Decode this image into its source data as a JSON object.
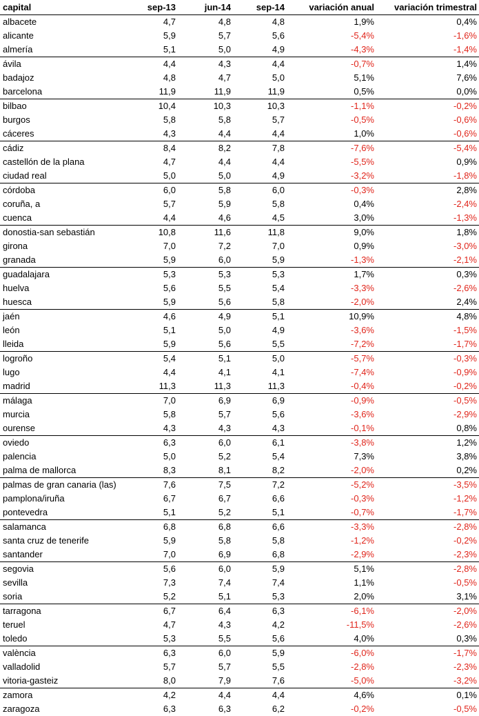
{
  "table": {
    "header": [
      "capital",
      "sep-13",
      "jun-14",
      "sep-14",
      "variación anual",
      "variación trimestral"
    ],
    "rows": [
      [
        "albacete",
        "4,7",
        "4,8",
        "4,8",
        "1,9%",
        "0,4%"
      ],
      [
        "alicante",
        "5,9",
        "5,7",
        "5,6",
        "-5,4%",
        "-1,6%"
      ],
      [
        "almería",
        "5,1",
        "5,0",
        "4,9",
        "-4,3%",
        "-1,4%"
      ],
      [
        "ávila",
        "4,4",
        "4,3",
        "4,4",
        "-0,7%",
        "1,4%"
      ],
      [
        "badajoz",
        "4,8",
        "4,7",
        "5,0",
        "5,1%",
        "7,6%"
      ],
      [
        "barcelona",
        "11,9",
        "11,9",
        "11,9",
        "0,5%",
        "0,0%"
      ],
      [
        "bilbao",
        "10,4",
        "10,3",
        "10,3",
        "-1,1%",
        "-0,2%"
      ],
      [
        "burgos",
        "5,8",
        "5,8",
        "5,7",
        "-0,5%",
        "-0,6%"
      ],
      [
        "cáceres",
        "4,3",
        "4,4",
        "4,4",
        "1,0%",
        "-0,6%"
      ],
      [
        "cádiz",
        "8,4",
        "8,2",
        "7,8",
        "-7,6%",
        "-5,4%"
      ],
      [
        "castellón de la plana",
        "4,7",
        "4,4",
        "4,4",
        "-5,5%",
        "0,9%"
      ],
      [
        "ciudad real",
        "5,0",
        "5,0",
        "4,9",
        "-3,2%",
        "-1,8%"
      ],
      [
        "córdoba",
        "6,0",
        "5,8",
        "6,0",
        "-0,3%",
        "2,8%"
      ],
      [
        "coruña, a",
        "5,7",
        "5,9",
        "5,8",
        "0,4%",
        "-2,4%"
      ],
      [
        "cuenca",
        "4,4",
        "4,6",
        "4,5",
        "3,0%",
        "-1,3%"
      ],
      [
        "donostia-san sebastián",
        "10,8",
        "11,6",
        "11,8",
        "9,0%",
        "1,8%"
      ],
      [
        "girona",
        "7,0",
        "7,2",
        "7,0",
        "0,9%",
        "-3,0%"
      ],
      [
        "granada",
        "5,9",
        "6,0",
        "5,9",
        "-1,3%",
        "-2,1%"
      ],
      [
        "guadalajara",
        "5,3",
        "5,3",
        "5,3",
        "1,7%",
        "0,3%"
      ],
      [
        "huelva",
        "5,6",
        "5,5",
        "5,4",
        "-3,3%",
        "-2,6%"
      ],
      [
        "huesca",
        "5,9",
        "5,6",
        "5,8",
        "-2,0%",
        "2,4%"
      ],
      [
        "jaén",
        "4,6",
        "4,9",
        "5,1",
        "10,9%",
        "4,8%"
      ],
      [
        "león",
        "5,1",
        "5,0",
        "4,9",
        "-3,6%",
        "-1,5%"
      ],
      [
        "lleida",
        "5,9",
        "5,6",
        "5,5",
        "-7,2%",
        "-1,7%"
      ],
      [
        "logroño",
        "5,4",
        "5,1",
        "5,0",
        "-5,7%",
        "-0,3%"
      ],
      [
        "lugo",
        "4,4",
        "4,1",
        "4,1",
        "-7,4%",
        "-0,9%"
      ],
      [
        "madrid",
        "11,3",
        "11,3",
        "11,3",
        "-0,4%",
        "-0,2%"
      ],
      [
        "málaga",
        "7,0",
        "6,9",
        "6,9",
        "-0,9%",
        "-0,5%"
      ],
      [
        "murcia",
        "5,8",
        "5,7",
        "5,6",
        "-3,6%",
        "-2,9%"
      ],
      [
        "ourense",
        "4,3",
        "4,3",
        "4,3",
        "-0,1%",
        "0,8%"
      ],
      [
        "oviedo",
        "6,3",
        "6,0",
        "6,1",
        "-3,8%",
        "1,2%"
      ],
      [
        "palencia",
        "5,0",
        "5,2",
        "5,4",
        "7,3%",
        "3,8%"
      ],
      [
        "palma de mallorca",
        "8,3",
        "8,1",
        "8,2",
        "-2,0%",
        "0,2%"
      ],
      [
        "palmas de gran canaria (las)",
        "7,6",
        "7,5",
        "7,2",
        "-5,2%",
        "-3,5%"
      ],
      [
        "pamplona/iruña",
        "6,7",
        "6,7",
        "6,6",
        "-0,3%",
        "-1,2%"
      ],
      [
        "pontevedra",
        "5,1",
        "5,2",
        "5,1",
        "-0,7%",
        "-1,7%"
      ],
      [
        "salamanca",
        "6,8",
        "6,8",
        "6,6",
        "-3,3%",
        "-2,8%"
      ],
      [
        "santa cruz de tenerife",
        "5,9",
        "5,8",
        "5,8",
        "-1,2%",
        "-0,2%"
      ],
      [
        "santander",
        "7,0",
        "6,9",
        "6,8",
        "-2,9%",
        "-2,3%"
      ],
      [
        "segovia",
        "5,6",
        "6,0",
        "5,9",
        "5,1%",
        "-2,8%"
      ],
      [
        "sevilla",
        "7,3",
        "7,4",
        "7,4",
        "1,1%",
        "-0,5%"
      ],
      [
        "soria",
        "5,2",
        "5,1",
        "5,3",
        "2,0%",
        "3,1%"
      ],
      [
        "tarragona",
        "6,7",
        "6,4",
        "6,3",
        "-6,1%",
        "-2,0%"
      ],
      [
        "teruel",
        "4,7",
        "4,3",
        "4,2",
        "-11,5%",
        "-2,6%"
      ],
      [
        "toledo",
        "5,3",
        "5,5",
        "5,6",
        "4,0%",
        "0,3%"
      ],
      [
        "valència",
        "6,3",
        "6,0",
        "5,9",
        "-6,0%",
        "-1,7%"
      ],
      [
        "valladolid",
        "5,7",
        "5,7",
        "5,5",
        "-2,8%",
        "-2,3%"
      ],
      [
        "vitoria-gasteiz",
        "8,0",
        "7,9",
        "7,6",
        "-5,0%",
        "-3,2%"
      ],
      [
        "zamora",
        "4,2",
        "4,4",
        "4,4",
        "4,6%",
        "0,1%"
      ],
      [
        "zaragoza",
        "6,3",
        "6,3",
        "6,2",
        "-0,2%",
        "-0,5%"
      ]
    ]
  }
}
